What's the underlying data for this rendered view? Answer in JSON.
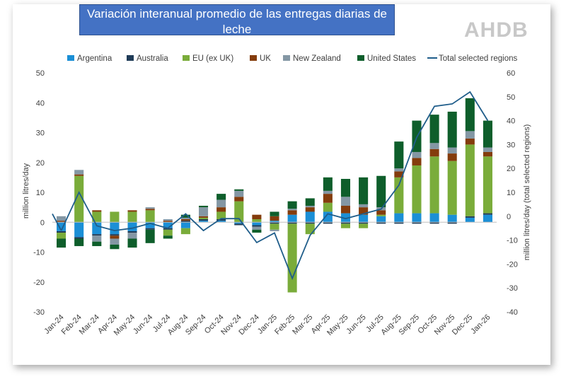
{
  "header": {
    "logo": "AHDB"
  },
  "chart_data": {
    "type": "bar",
    "subtype": "stacked-bar-with-line",
    "title": "Variación interanual promedio de las entregas diarias de leche",
    "ylabel": "million litres/day",
    "y2label": "million litres/day (total selected regions)",
    "ylim": [
      -30,
      50
    ],
    "y2lim": [
      -40,
      60
    ],
    "yticks": [
      -30,
      -20,
      -10,
      0,
      10,
      20,
      30,
      40,
      50
    ],
    "y2ticks": [
      -40,
      -30,
      -20,
      -10,
      0,
      10,
      20,
      30,
      40,
      50,
      60
    ],
    "grid": false,
    "legend_position": "top",
    "categories": [
      "Jan-24",
      "Feb-24",
      "Mar-24",
      "Apr-24",
      "May-24",
      "Jun-24",
      "Jul-24",
      "Aug-24",
      "Sep-24",
      "Oct-24",
      "Nov-24",
      "Dec-24",
      "Jan-25",
      "Feb-25",
      "Mar-25",
      "Apr-25",
      "May-25",
      "Jun-25",
      "Jul-25",
      "Aug-25",
      "Sep-25",
      "Oct-25",
      "Nov-25",
      "Dec-25",
      "Jan-26"
    ],
    "series": [
      {
        "name": "Argentina",
        "color": "#1b8fd6",
        "values": [
          -3,
          -5,
          -4,
          -4,
          -3,
          -2,
          -2,
          -2,
          0.5,
          0.5,
          -0.5,
          -1,
          0.5,
          2.5,
          3.5,
          3.5,
          3,
          2.5,
          2,
          3,
          3,
          3,
          2.5,
          1.5,
          2.5
        ]
      },
      {
        "name": "Australia",
        "color": "#1f3b57",
        "values": [
          -0.5,
          -0.5,
          -0.5,
          -0.5,
          -0.5,
          -0.5,
          -0.5,
          0.5,
          0.5,
          0.5,
          -0.5,
          -0.5,
          -0.5,
          -0.5,
          -0.5,
          -0.5,
          -0.5,
          -0.5,
          -0.5,
          -0.5,
          -0.5,
          -0.5,
          -0.5,
          0.5,
          0.5
        ]
      },
      {
        "name": "EU (ex UK)",
        "color": "#7aac3a",
        "values": [
          -2,
          15.5,
          3.5,
          3.5,
          3.5,
          4,
          -2,
          -2,
          0.5,
          2.5,
          7,
          1,
          -2,
          -23,
          -3.5,
          3,
          -1.5,
          -1.5,
          0.5,
          12,
          16,
          19,
          18,
          24,
          19
        ]
      },
      {
        "name": "UK",
        "color": "#843c0c",
        "values": [
          0.5,
          0.5,
          0.5,
          -1,
          0.5,
          0.5,
          0.5,
          0.5,
          0.5,
          1.5,
          1.5,
          1.5,
          1.5,
          1.5,
          1.5,
          3,
          2.5,
          2.5,
          1.5,
          2,
          2.5,
          2.5,
          2.5,
          2,
          1.5
        ]
      },
      {
        "name": "New Zealand",
        "color": "#8497a4",
        "values": [
          1.5,
          1.5,
          -2,
          -2,
          -2,
          0.5,
          0.5,
          0.5,
          3,
          2.5,
          2,
          -1,
          -0.5,
          0.5,
          0.5,
          1,
          3,
          1,
          1,
          1,
          2,
          2,
          2,
          2.5,
          1.5
        ]
      },
      {
        "name": "United States",
        "color": "#0e5e2b",
        "values": [
          -3,
          -2.5,
          -1.5,
          -1.5,
          -3,
          -4.5,
          -1,
          1,
          0.5,
          2,
          0.5,
          -1,
          1.5,
          2.5,
          2.5,
          4.5,
          6,
          9,
          10.5,
          9,
          10.5,
          9.5,
          12,
          11,
          9
        ]
      }
    ],
    "line": {
      "name": "Total selected regions",
      "color": "#1f5d8a",
      "axis": "secondary",
      "values": [
        -6,
        10,
        -4,
        -6,
        -5,
        -3,
        -5,
        1,
        -6,
        -1,
        -1,
        -11,
        -7,
        -26,
        -8,
        1,
        -1,
        1,
        3,
        13,
        33,
        46,
        47,
        52,
        40
      ]
    }
  }
}
